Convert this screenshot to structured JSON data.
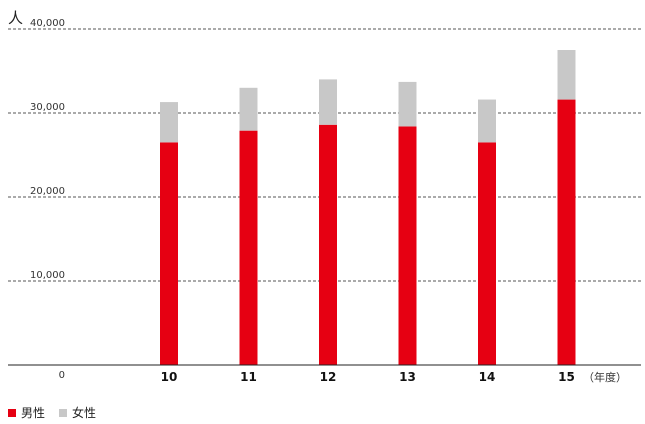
{
  "chart_data": {
    "type": "bar",
    "stacked": true,
    "unit_label": "人",
    "x_unit_label": "（年度）",
    "categories": [
      "10",
      "11",
      "12",
      "13",
      "14",
      "15"
    ],
    "series": [
      {
        "name": "男性",
        "color": "#e60012",
        "values": [
          26500,
          27900,
          28600,
          28400,
          26500,
          31600
        ]
      },
      {
        "name": "女性",
        "color": "#c8c8c8",
        "values": [
          4800,
          5100,
          5400,
          5300,
          5100,
          5900
        ]
      }
    ],
    "y_ticks": [
      "0",
      "10,000",
      "20,000",
      "30,000",
      "40,000"
    ],
    "y_tick_values": [
      0,
      10000,
      20000,
      30000,
      40000
    ],
    "ylim": [
      0,
      40000
    ],
    "grid": true,
    "legend_position": "bottom-left"
  }
}
